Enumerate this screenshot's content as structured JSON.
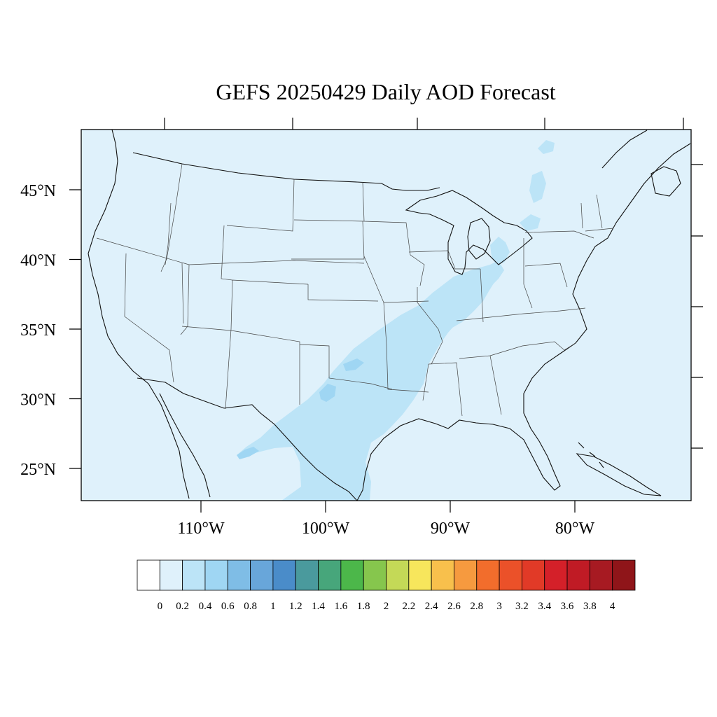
{
  "title": "GEFS 20250429 Daily AOD Forecast",
  "map": {
    "lon_range": [
      -119,
      -70
    ],
    "lat_range": [
      22.5,
      49.5
    ],
    "background_color": "#dff1fb",
    "lon_ticks": [
      {
        "lon": -110,
        "label": "110°W"
      },
      {
        "lon": -100,
        "label": "100°W"
      },
      {
        "lon": -90,
        "label": "90°W"
      },
      {
        "lon": -80,
        "label": "80°W"
      }
    ],
    "lat_ticks": [
      {
        "lat": 25,
        "label": "25°N"
      },
      {
        "lat": 30,
        "label": "30°N"
      },
      {
        "lat": 35,
        "label": "35°N"
      },
      {
        "lat": 40,
        "label": "40°N"
      },
      {
        "lat": 45,
        "label": "45°N"
      }
    ]
  },
  "aod_regions": [
    {
      "level": "0.2-0.4",
      "color": "#bce4f7",
      "area": "southern Plains to Ohio Valley band"
    },
    {
      "level": "0.4-0.6",
      "color": "#9fd6f3",
      "area": "west Texas / New Mexico border"
    }
  ],
  "colorbar": {
    "colors": [
      "#ffffff",
      "#dff1fb",
      "#bce4f7",
      "#9fd6f3",
      "#7fbde6",
      "#68a6da",
      "#4a8cc9",
      "#4a9a9d",
      "#47a67b",
      "#4cb74a",
      "#86c64d",
      "#c4d957",
      "#f7e65c",
      "#f8c04c",
      "#f69a3f",
      "#f26d2c",
      "#eb5129",
      "#e13a27",
      "#d42029",
      "#c01b25",
      "#a71a22",
      "#8f1519"
    ],
    "labels": [
      "0",
      "0.2",
      "0.4",
      "0.6",
      "0.8",
      "1",
      "1.2",
      "1.4",
      "1.6",
      "1.8",
      "2",
      "2.2",
      "2.4",
      "2.6",
      "2.8",
      "3",
      "3.2",
      "3.4",
      "3.6",
      "3.8",
      "4"
    ]
  }
}
